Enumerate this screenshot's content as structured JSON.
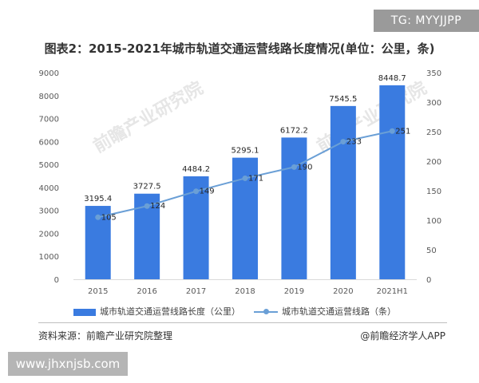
{
  "tag": "TG: MYYJJPP",
  "site": "www.jhxnjsb.com",
  "watermark": "前瞻产业研究院",
  "footer": {
    "source": "资料来源：前瞻产业研究院整理",
    "credit": "@前瞻经济学人APP"
  },
  "colors": {
    "bar": "#3a7be0",
    "line": "#6a9fd6",
    "grid": "#e0e0e0"
  },
  "chart_data": {
    "type": "bar",
    "title": "图表2：2015-2021年城市轨道交通运营线路长度情况(单位：公里，条)",
    "categories": [
      "2015",
      "2016",
      "2017",
      "2018",
      "2019",
      "2020",
      "2021H1"
    ],
    "series": [
      {
        "name": "城市轨道交通运营线路长度（公里）",
        "type": "bar",
        "axis": "left",
        "values": [
          3195.4,
          3727.5,
          4484.2,
          5295.1,
          6172.2,
          7545.5,
          8448.7
        ],
        "labels": [
          "3195.4",
          "3727.5",
          "4484.2",
          "5295.1",
          "6172.2",
          "7545.5",
          "8448.7"
        ]
      },
      {
        "name": "城市轨道交通运营线路（条）",
        "type": "line",
        "axis": "right",
        "values": [
          105,
          124,
          149,
          171,
          190,
          233,
          251
        ],
        "labels": [
          "105",
          "124",
          "149",
          "171",
          "190",
          "233",
          "251"
        ]
      }
    ],
    "y_left": {
      "min": 0,
      "max": 9000,
      "ticks": [
        "0",
        "1000",
        "2000",
        "3000",
        "4000",
        "5000",
        "6000",
        "7000",
        "8000",
        "9000"
      ]
    },
    "y_right": {
      "min": 0,
      "max": 350,
      "ticks": [
        "0",
        "50",
        "100",
        "150",
        "200",
        "250",
        "300",
        "350"
      ]
    },
    "grid": false,
    "legend": "bottom"
  }
}
